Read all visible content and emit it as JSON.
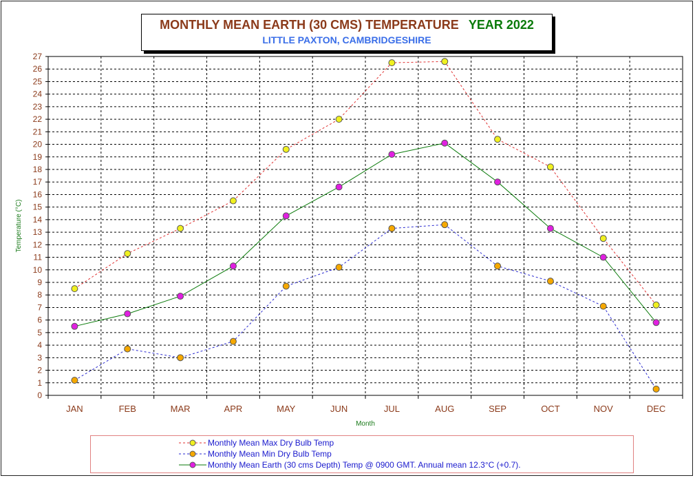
{
  "chart_data": {
    "type": "line",
    "title": "MONTHLY MEAN  EARTH (30 CMS) TEMPERATURE",
    "title_year": "YEAR 2022",
    "subtitle": "LITTLE PAXTON, CAMBRIDGESHIRE",
    "xlabel": "Month",
    "ylabel": "Temperature (°C)",
    "ylim": [
      0,
      27
    ],
    "yticks": [
      0,
      1,
      2,
      3,
      4,
      5,
      6,
      7,
      8,
      9,
      10,
      11,
      12,
      13,
      14,
      15,
      16,
      17,
      18,
      19,
      20,
      21,
      22,
      23,
      24,
      25,
      26,
      27
    ],
    "grid": true,
    "legend_position": "bottom",
    "categories": [
      "JAN",
      "FEB",
      "MAR",
      "APR",
      "MAY",
      "JUN",
      "JUL",
      "AUG",
      "SEP",
      "OCT",
      "NOV",
      "DEC"
    ],
    "series": [
      {
        "name": "Monthly Mean Max Dry Bulb Temp",
        "values": [
          8.5,
          11.3,
          13.3,
          15.5,
          19.6,
          22.0,
          26.5,
          26.6,
          20.4,
          18.2,
          12.5,
          7.2
        ],
        "line_color": "#e03030",
        "line_style": "dashed",
        "marker_color": "#f0f020"
      },
      {
        "name": "Monthly Mean Min Dry Bulb Temp",
        "values": [
          1.2,
          3.7,
          3.0,
          4.3,
          8.7,
          10.2,
          13.3,
          13.6,
          10.3,
          9.1,
          7.1,
          0.5
        ],
        "line_color": "#2a2ad0",
        "line_style": "dashed",
        "marker_color": "#f5a800"
      },
      {
        "name": "Monthly Mean Earth (30 cms Depth) Temp @ 0900 GMT. Annual mean 12.3°C (+0.7).",
        "values": [
          5.5,
          6.5,
          7.9,
          10.3,
          14.3,
          16.6,
          19.2,
          20.1,
          17.0,
          13.3,
          11.0,
          5.8
        ],
        "line_color": "#0a7a0a",
        "line_style": "solid",
        "marker_color": "#e020e0"
      }
    ]
  }
}
